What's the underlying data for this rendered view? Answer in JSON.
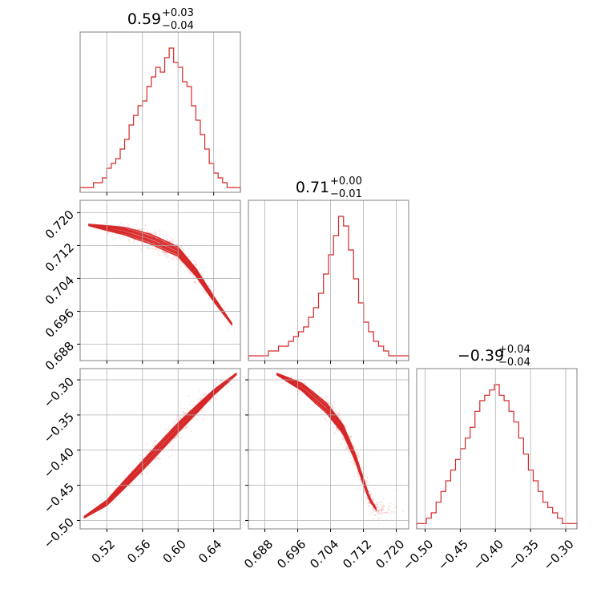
{
  "chart_data": {
    "type": "corner",
    "color": "#d62728",
    "params": [
      {
        "range": [
          0.49,
          0.67
        ],
        "ticks": [
          0.52,
          0.56,
          0.6,
          0.64
        ],
        "tick_labels": [
          "0.52",
          "0.56",
          "0.60",
          "0.64"
        ],
        "title": {
          "median": "0.59",
          "plus": "+0.03",
          "minus": "−0.04"
        },
        "hist": [
          1,
          1,
          1,
          2,
          2,
          3,
          5,
          6,
          7,
          9,
          11,
          14,
          16,
          18,
          19,
          22,
          24,
          26,
          25,
          28,
          30,
          27,
          26,
          23,
          22,
          18,
          15,
          12,
          9,
          6,
          4,
          3,
          2,
          1,
          1,
          1
        ]
      },
      {
        "range": [
          0.684,
          0.723
        ],
        "ticks": [
          0.688,
          0.696,
          0.704,
          0.712,
          0.72
        ],
        "tick_labels": [
          "0.688",
          "0.696",
          "0.704",
          "0.712",
          "0.720"
        ],
        "title": {
          "median": "0.71",
          "plus": "+0.00",
          "minus": "−0.01"
        },
        "hist": [
          1,
          1,
          1,
          1,
          2,
          2,
          3,
          3,
          4,
          5,
          6,
          7,
          9,
          11,
          14,
          18,
          22,
          26,
          30,
          28,
          23,
          17,
          12,
          8,
          6,
          4,
          3,
          2,
          1,
          1,
          1,
          1
        ]
      },
      {
        "range": [
          -0.512,
          -0.284
        ],
        "ticks": [
          -0.5,
          -0.45,
          -0.4,
          -0.35,
          -0.3
        ],
        "tick_labels": [
          "−0.50",
          "−0.45",
          "−0.40",
          "−0.35",
          "−0.30"
        ],
        "title": {
          "median": "−0.39",
          "plus": "+0.04",
          "minus": "−0.04"
        },
        "hist": [
          1,
          1,
          2,
          3,
          5,
          7,
          9,
          11,
          13,
          15,
          17,
          19,
          22,
          24,
          25,
          26,
          27,
          25,
          24,
          22,
          20,
          17,
          14,
          11,
          9,
          7,
          5,
          4,
          3,
          2,
          1,
          1,
          1
        ]
      }
    ],
    "pairs": [
      {
        "x_param": 0,
        "y_param": 1,
        "center": [
          0.592,
          0.7105
        ],
        "spread": [
          0.029,
          0.0045
        ],
        "ridge": [
          [
            0.5,
            0.717
          ],
          [
            0.54,
            0.7155
          ],
          [
            0.57,
            0.7135
          ],
          [
            0.6,
            0.7105
          ],
          [
            0.62,
            0.7055
          ],
          [
            0.64,
            0.699
          ],
          [
            0.66,
            0.693
          ]
        ]
      },
      {
        "x_param": 0,
        "y_param": 2,
        "center": [
          0.59,
          -0.39
        ],
        "spread": [
          0.029,
          0.04
        ],
        "ridge": [
          [
            0.495,
            -0.495
          ],
          [
            0.52,
            -0.475
          ],
          [
            0.56,
            -0.422
          ],
          [
            0.6,
            -0.368
          ],
          [
            0.64,
            -0.318
          ],
          [
            0.665,
            -0.292
          ]
        ]
      },
      {
        "x_param": 1,
        "y_param": 2,
        "center": [
          0.7085,
          -0.39
        ],
        "spread": [
          0.005,
          0.04
        ],
        "ridge": [
          [
            0.691,
            -0.292
          ],
          [
            0.697,
            -0.31
          ],
          [
            0.703,
            -0.34
          ],
          [
            0.707,
            -0.37
          ],
          [
            0.71,
            -0.41
          ],
          [
            0.712,
            -0.445
          ],
          [
            0.7135,
            -0.47
          ],
          [
            0.715,
            -0.483
          ]
        ]
      }
    ]
  }
}
